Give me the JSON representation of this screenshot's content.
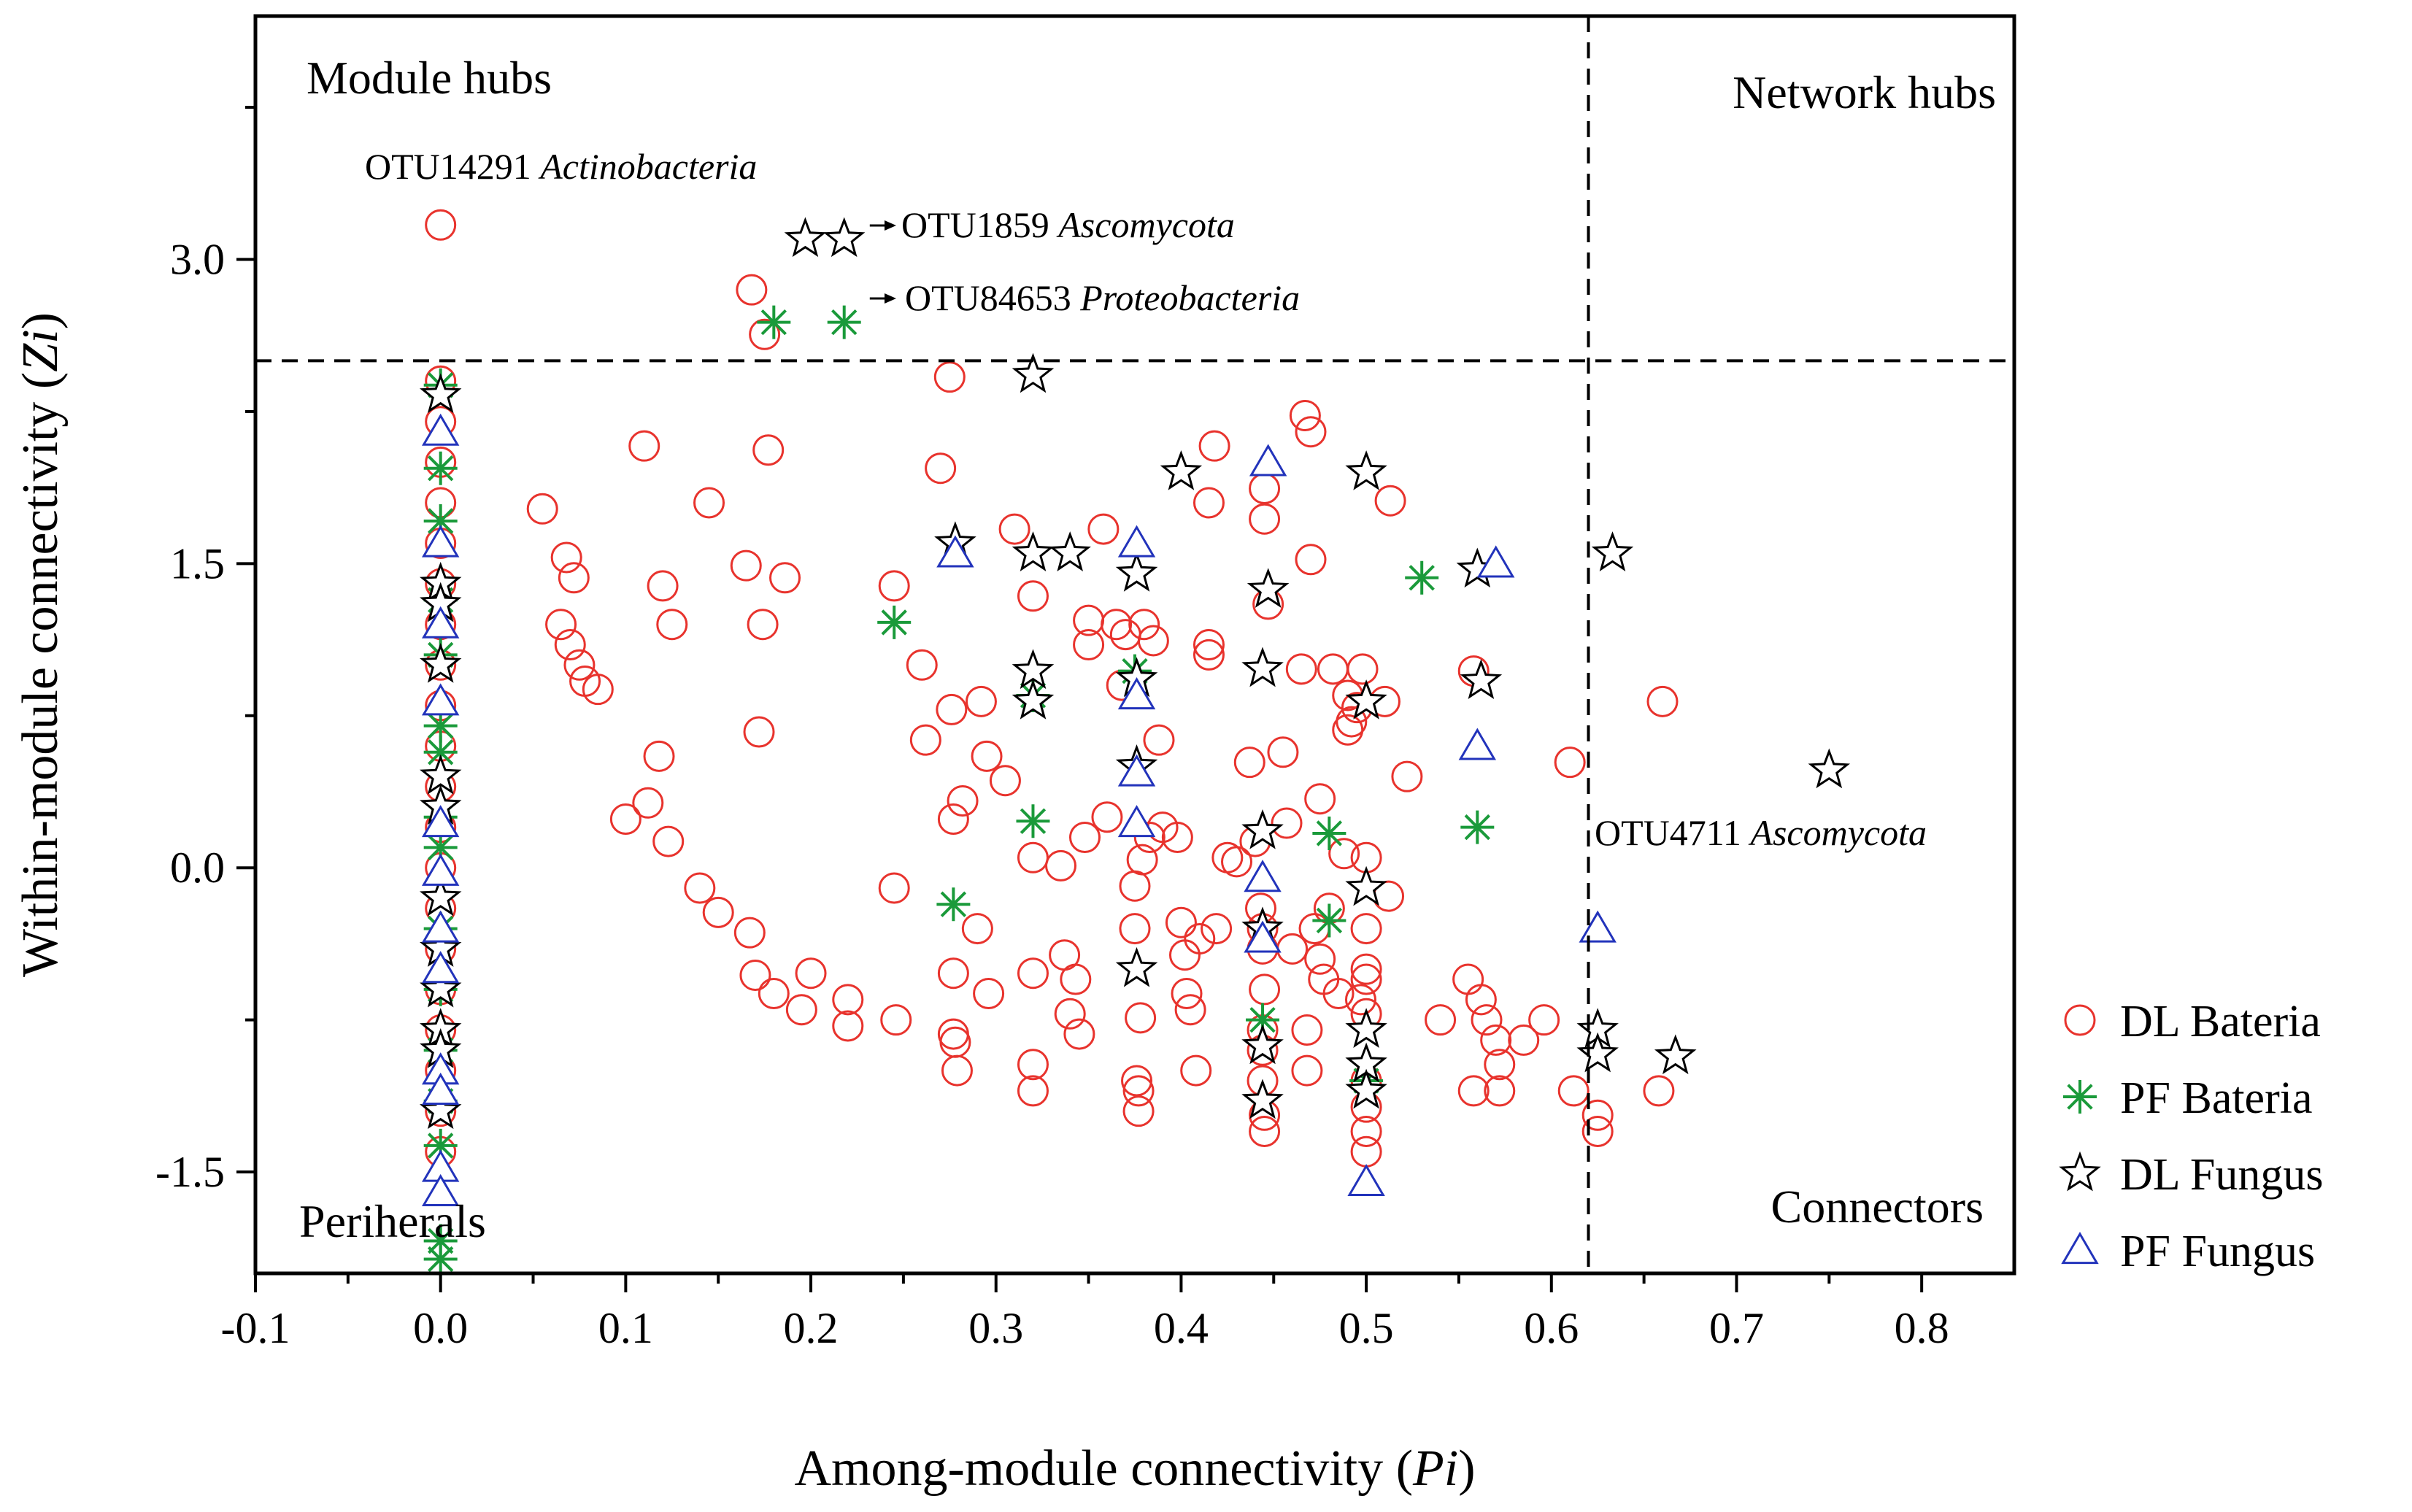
{
  "chart_data": {
    "type": "scatter",
    "xlabel": {
      "text": "Among-module connectivity (",
      "italic": "Pi",
      "close": ")"
    },
    "ylabel": {
      "text": "Within-module connectivity (",
      "italic": "Zi",
      "close": ")"
    },
    "xlim": [
      -0.1,
      0.85
    ],
    "ylim": [
      -2.0,
      4.2
    ],
    "xticks": [
      "-0.1",
      "0.0",
      "0.1",
      "0.2",
      "0.3",
      "0.4",
      "0.5",
      "0.6",
      "0.7",
      "0.8"
    ],
    "xtick_values": [
      -0.1,
      0.0,
      0.1,
      0.2,
      0.3,
      0.4,
      0.5,
      0.6,
      0.7,
      0.8
    ],
    "yticks": [
      "-1.5",
      "0.0",
      "1.5",
      "3.0"
    ],
    "ytick_values": [
      -1.5,
      0.0,
      1.5,
      3.0
    ],
    "thresholds": {
      "zi": 2.5,
      "pi": 0.62
    },
    "grid": false,
    "legend_position": "right",
    "quadrant_labels": {
      "top_left": "Module hubs",
      "top_right": "Network hubs",
      "bottom_left": "Periherals",
      "bottom_right": "Connectors"
    },
    "annotations": [
      {
        "prefix": "OTU14291 ",
        "italic": "Actinobacteria",
        "x": 0.0,
        "y": 3.17
      },
      {
        "prefix": "OTU1859 ",
        "italic": "Ascomycota",
        "x": 0.22,
        "y": 3.1,
        "arrow": true
      },
      {
        "prefix": "OTU84653 ",
        "italic": "Proteobacteria",
        "x": 0.22,
        "y": 2.7,
        "arrow": true
      },
      {
        "prefix": "OTU4711 ",
        "italic": "Ascomycota",
        "x": 0.625,
        "y": -0.3
      }
    ],
    "series": [
      {
        "name": "DL Bateria",
        "marker": "circle",
        "color": "#e8332d",
        "points": [
          [
            0.0,
            3.17
          ],
          [
            0.0,
            2.4
          ],
          [
            0.0,
            2.2
          ],
          [
            0.0,
            2.0
          ],
          [
            0.0,
            1.8
          ],
          [
            0.0,
            1.6
          ],
          [
            0.0,
            1.4
          ],
          [
            0.0,
            1.2
          ],
          [
            0.0,
            1.0
          ],
          [
            0.0,
            0.8
          ],
          [
            0.0,
            0.6
          ],
          [
            0.0,
            0.4
          ],
          [
            0.0,
            0.2
          ],
          [
            0.0,
            0.0
          ],
          [
            0.0,
            -0.2
          ],
          [
            0.0,
            -0.4
          ],
          [
            0.0,
            -0.6
          ],
          [
            0.0,
            -0.8
          ],
          [
            0.0,
            -1.0
          ],
          [
            0.0,
            -1.2
          ],
          [
            0.0,
            -1.4
          ],
          [
            0.055,
            1.77
          ],
          [
            0.065,
            1.2
          ],
          [
            0.068,
            1.53
          ],
          [
            0.07,
            1.1
          ],
          [
            0.072,
            1.43
          ],
          [
            0.075,
            1.0
          ],
          [
            0.078,
            0.92
          ],
          [
            0.085,
            0.88
          ],
          [
            0.1,
            0.24
          ],
          [
            0.11,
            2.08
          ],
          [
            0.112,
            0.32
          ],
          [
            0.118,
            0.55
          ],
          [
            0.12,
            1.39
          ],
          [
            0.123,
            0.13
          ],
          [
            0.125,
            1.2
          ],
          [
            0.14,
            -0.1
          ],
          [
            0.145,
            1.8
          ],
          [
            0.15,
            -0.22
          ],
          [
            0.165,
            1.49
          ],
          [
            0.167,
            -0.32
          ],
          [
            0.168,
            2.85
          ],
          [
            0.17,
            -0.53
          ],
          [
            0.172,
            0.67
          ],
          [
            0.174,
            1.2
          ],
          [
            0.175,
            2.63
          ],
          [
            0.177,
            2.06
          ],
          [
            0.18,
            -0.62
          ],
          [
            0.186,
            1.43
          ],
          [
            0.195,
            -0.7
          ],
          [
            0.2,
            -0.52
          ],
          [
            0.22,
            -0.78
          ],
          [
            0.22,
            -0.65
          ],
          [
            0.245,
            1.39
          ],
          [
            0.245,
            -0.1
          ],
          [
            0.246,
            -0.75
          ],
          [
            0.26,
            1.0
          ],
          [
            0.262,
            0.63
          ],
          [
            0.27,
            1.97
          ],
          [
            0.275,
            2.42
          ],
          [
            0.276,
            0.78
          ],
          [
            0.277,
            0.24
          ],
          [
            0.277,
            -0.52
          ],
          [
            0.277,
            -0.82
          ],
          [
            0.278,
            -0.86
          ],
          [
            0.279,
            -1.0
          ],
          [
            0.282,
            0.33
          ],
          [
            0.29,
            -0.3
          ],
          [
            0.292,
            0.82
          ],
          [
            0.295,
            0.55
          ],
          [
            0.296,
            -0.62
          ],
          [
            0.305,
            0.43
          ],
          [
            0.31,
            1.67
          ],
          [
            0.32,
            0.05
          ],
          [
            0.32,
            1.34
          ],
          [
            0.32,
            -0.52
          ],
          [
            0.32,
            -0.97
          ],
          [
            0.32,
            -1.1
          ],
          [
            0.335,
            0.01
          ],
          [
            0.337,
            -0.43
          ],
          [
            0.34,
            -0.72
          ],
          [
            0.343,
            -0.55
          ],
          [
            0.345,
            -0.82
          ],
          [
            0.348,
            0.15
          ],
          [
            0.35,
            1.22
          ],
          [
            0.35,
            1.1
          ],
          [
            0.358,
            1.67
          ],
          [
            0.36,
            0.25
          ],
          [
            0.365,
            1.2
          ],
          [
            0.368,
            0.9
          ],
          [
            0.37,
            1.15
          ],
          [
            0.375,
            -0.09
          ],
          [
            0.375,
            -0.3
          ],
          [
            0.376,
            -1.05
          ],
          [
            0.377,
            -1.1
          ],
          [
            0.377,
            -1.2
          ],
          [
            0.378,
            -0.74
          ],
          [
            0.379,
            0.04
          ],
          [
            0.38,
            1.2
          ],
          [
            0.383,
            0.15
          ],
          [
            0.385,
            1.12
          ],
          [
            0.388,
            0.63
          ],
          [
            0.39,
            0.2
          ],
          [
            0.398,
            0.15
          ],
          [
            0.4,
            -0.27
          ],
          [
            0.402,
            -0.43
          ],
          [
            0.403,
            -0.62
          ],
          [
            0.405,
            -0.7
          ],
          [
            0.408,
            -1.0
          ],
          [
            0.41,
            -0.35
          ],
          [
            0.415,
            1.1
          ],
          [
            0.415,
            1.05
          ],
          [
            0.415,
            1.8
          ],
          [
            0.418,
            2.08
          ],
          [
            0.419,
            -0.3
          ],
          [
            0.425,
            0.05
          ],
          [
            0.43,
            0.03
          ],
          [
            0.437,
            0.52
          ],
          [
            0.44,
            0.13
          ],
          [
            0.443,
            -0.2
          ],
          [
            0.444,
            -0.3
          ],
          [
            0.444,
            -0.4
          ],
          [
            0.445,
            -0.6
          ],
          [
            0.444,
            -0.8
          ],
          [
            0.444,
            -0.9
          ],
          [
            0.444,
            -1.05
          ],
          [
            0.445,
            -1.22
          ],
          [
            0.445,
            -1.3
          ],
          [
            0.445,
            1.87
          ],
          [
            0.445,
            1.72
          ],
          [
            0.447,
            1.3
          ],
          [
            0.455,
            0.57
          ],
          [
            0.457,
            0.22
          ],
          [
            0.46,
            -0.4
          ],
          [
            0.465,
            0.98
          ],
          [
            0.467,
            2.23
          ],
          [
            0.468,
            -0.8
          ],
          [
            0.468,
            -1.0
          ],
          [
            0.47,
            2.15
          ],
          [
            0.47,
            1.52
          ],
          [
            0.472,
            -0.3
          ],
          [
            0.475,
            -0.45
          ],
          [
            0.475,
            0.34
          ],
          [
            0.477,
            -0.55
          ],
          [
            0.48,
            -0.2
          ],
          [
            0.482,
            0.98
          ],
          [
            0.485,
            -0.62
          ],
          [
            0.488,
            0.07
          ],
          [
            0.49,
            0.68
          ],
          [
            0.49,
            0.85
          ],
          [
            0.492,
            0.72
          ],
          [
            0.495,
            0.79
          ],
          [
            0.497,
            -0.65
          ],
          [
            0.498,
            0.98
          ],
          [
            0.5,
            0.05
          ],
          [
            0.5,
            -0.3
          ],
          [
            0.5,
            -0.5
          ],
          [
            0.5,
            -0.55
          ],
          [
            0.5,
            -0.72
          ],
          [
            0.5,
            -1.05
          ],
          [
            0.5,
            -1.18
          ],
          [
            0.5,
            -1.3
          ],
          [
            0.5,
            -1.4
          ],
          [
            0.51,
            0.82
          ],
          [
            0.512,
            -0.14
          ],
          [
            0.513,
            1.81
          ],
          [
            0.522,
            0.45
          ],
          [
            0.54,
            -0.75
          ],
          [
            0.555,
            -0.55
          ],
          [
            0.558,
            0.97
          ],
          [
            0.558,
            -1.1
          ],
          [
            0.562,
            -0.65
          ],
          [
            0.565,
            -0.75
          ],
          [
            0.57,
            -0.85
          ],
          [
            0.572,
            -1.1
          ],
          [
            0.572,
            -0.97
          ],
          [
            0.585,
            -0.85
          ],
          [
            0.596,
            -0.75
          ],
          [
            0.61,
            0.52
          ],
          [
            0.612,
            -1.1
          ],
          [
            0.625,
            -1.22
          ],
          [
            0.625,
            -1.3
          ],
          [
            0.658,
            -1.1
          ],
          [
            0.66,
            0.82
          ]
        ]
      },
      {
        "name": "PF Bateria",
        "marker": "asterisk",
        "color": "#1a9a3a",
        "points": [
          [
            0.0,
            2.38
          ],
          [
            0.0,
            1.97
          ],
          [
            0.0,
            1.71
          ],
          [
            0.0,
            1.32
          ],
          [
            0.0,
            1.05
          ],
          [
            0.0,
            0.7
          ],
          [
            0.0,
            0.57
          ],
          [
            0.0,
            0.25
          ],
          [
            0.0,
            0.1
          ],
          [
            0.0,
            -0.3
          ],
          [
            0.0,
            -0.6
          ],
          [
            0.0,
            -0.9
          ],
          [
            0.0,
            -1.15
          ],
          [
            0.0,
            -1.37
          ],
          [
            0.0,
            -1.84
          ],
          [
            0.0,
            -1.93
          ],
          [
            0.18,
            2.69
          ],
          [
            0.218,
            2.69
          ],
          [
            0.245,
            1.21
          ],
          [
            0.277,
            -0.18
          ],
          [
            0.32,
            0.23
          ],
          [
            0.32,
            0.85
          ],
          [
            0.375,
            0.97
          ],
          [
            0.444,
            -0.75
          ],
          [
            0.48,
            0.17
          ],
          [
            0.48,
            -0.26
          ],
          [
            0.5,
            -1.05
          ],
          [
            0.53,
            1.43
          ],
          [
            0.56,
            0.2
          ]
        ]
      },
      {
        "name": "DL Fungus",
        "marker": "star",
        "color": "#000000",
        "points": [
          [
            0.0,
            2.33
          ],
          [
            0.0,
            1.4
          ],
          [
            0.0,
            1.3
          ],
          [
            0.0,
            1.0
          ],
          [
            0.0,
            0.45
          ],
          [
            0.0,
            0.3
          ],
          [
            0.0,
            -0.15
          ],
          [
            0.0,
            -0.4
          ],
          [
            0.0,
            -0.6
          ],
          [
            0.0,
            -0.8
          ],
          [
            0.0,
            -0.9
          ],
          [
            0.0,
            -1.2
          ],
          [
            0.197,
            3.1
          ],
          [
            0.218,
            3.1
          ],
          [
            0.278,
            1.6
          ],
          [
            0.32,
            2.43
          ],
          [
            0.32,
            1.55
          ],
          [
            0.32,
            0.97
          ],
          [
            0.32,
            0.82
          ],
          [
            0.34,
            1.55
          ],
          [
            0.376,
            1.45
          ],
          [
            0.376,
            0.93
          ],
          [
            0.376,
            0.5
          ],
          [
            0.376,
            -0.5
          ],
          [
            0.4,
            1.95
          ],
          [
            0.444,
            0.98
          ],
          [
            0.444,
            0.18
          ],
          [
            0.444,
            -0.3
          ],
          [
            0.444,
            -0.88
          ],
          [
            0.444,
            -1.15
          ],
          [
            0.447,
            1.37
          ],
          [
            0.5,
            1.95
          ],
          [
            0.5,
            0.82
          ],
          [
            0.5,
            -0.1
          ],
          [
            0.5,
            -0.8
          ],
          [
            0.5,
            -0.97
          ],
          [
            0.5,
            -1.1
          ],
          [
            0.56,
            1.47
          ],
          [
            0.562,
            0.92
          ],
          [
            0.625,
            -0.8
          ],
          [
            0.625,
            -0.92
          ],
          [
            0.633,
            1.55
          ],
          [
            0.667,
            -0.93
          ],
          [
            0.75,
            0.48
          ]
        ]
      },
      {
        "name": "PF Fungus",
        "marker": "triangle",
        "color": "#2233bb",
        "points": [
          [
            0.0,
            2.15
          ],
          [
            0.0,
            1.6
          ],
          [
            0.0,
            1.2
          ],
          [
            0.0,
            0.82
          ],
          [
            0.0,
            0.22
          ],
          [
            0.0,
            -0.02
          ],
          [
            0.0,
            -0.3
          ],
          [
            0.0,
            -0.5
          ],
          [
            0.0,
            -1.0
          ],
          [
            0.0,
            -1.1
          ],
          [
            0.0,
            -1.48
          ],
          [
            0.0,
            -1.6
          ],
          [
            0.278,
            1.55
          ],
          [
            0.376,
            1.6
          ],
          [
            0.376,
            0.85
          ],
          [
            0.376,
            0.47
          ],
          [
            0.376,
            0.22
          ],
          [
            0.444,
            -0.05
          ],
          [
            0.444,
            -0.35
          ],
          [
            0.447,
            2.0
          ],
          [
            0.5,
            -1.55
          ],
          [
            0.56,
            0.6
          ],
          [
            0.57,
            1.5
          ],
          [
            0.625,
            -0.3
          ]
        ]
      }
    ]
  }
}
